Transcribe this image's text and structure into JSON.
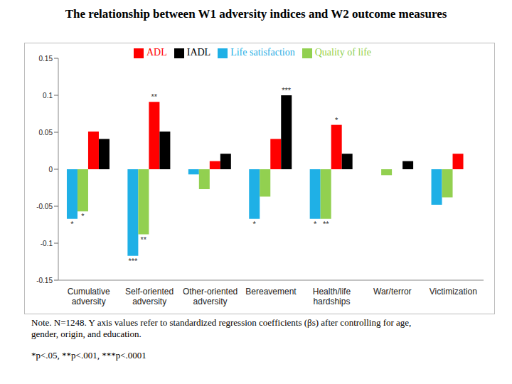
{
  "chart_data": {
    "type": "bar",
    "title": "The relationship between W1 adversity indices and W2 outcome measures",
    "categories": [
      "Cumulative adversity",
      "Self-oriented adversity",
      "Other-oriented adversity",
      "Bereavement",
      "Health/life hardships",
      "War/terror",
      "Victimization"
    ],
    "series": [
      {
        "name": "Life satisfaction",
        "color": "#1fb0e6",
        "values": [
          -0.067,
          -0.117,
          -0.007,
          -0.067,
          -0.067,
          0,
          -0.048
        ]
      },
      {
        "name": "Quality of life",
        "color": "#92d050",
        "values": [
          -0.057,
          -0.088,
          -0.027,
          -0.037,
          -0.067,
          -0.008,
          -0.038
        ]
      },
      {
        "name": "ADL",
        "color": "#ff0000",
        "values": [
          0.051,
          0.091,
          0.011,
          0.041,
          0.06,
          0,
          0.021
        ]
      },
      {
        "name": "IADL",
        "color": "#000000",
        "values": [
          0.041,
          0.051,
          0.021,
          0.1,
          0.021,
          0.011,
          0
        ]
      }
    ],
    "ylim": [
      -0.15,
      0.15
    ],
    "yticks": [
      -0.15,
      -0.1,
      -0.05,
      0,
      0.05,
      0.1,
      0.15
    ],
    "legend": "top",
    "annotations": [
      {
        "category": "Cumulative adversity",
        "series": "Life satisfaction",
        "text": "*"
      },
      {
        "category": "Cumulative adversity",
        "series": "Quality of life",
        "text": "*"
      },
      {
        "category": "Self-oriented adversity",
        "series": "Life satisfaction",
        "text": "***"
      },
      {
        "category": "Self-oriented adversity",
        "series": "Quality of life",
        "text": "**"
      },
      {
        "category": "Self-oriented adversity",
        "series": "ADL",
        "text": "**"
      },
      {
        "category": "Bereavement",
        "series": "Life satisfaction",
        "text": "*"
      },
      {
        "category": "Bereavement",
        "series": "IADL",
        "text": "***"
      },
      {
        "category": "Health/life hardships",
        "series": "Life satisfaction",
        "text": "*"
      },
      {
        "category": "Health/life hardships",
        "series": "Quality of life",
        "text": "**"
      },
      {
        "category": "Health/life hardships",
        "series": "ADL",
        "text": "*"
      }
    ],
    "note": "Note. N=1248. Y axis values refer to standardized regression coefficients (βs) after controlling for age, gender, origin, and education.",
    "footnote": "*p<.05, **p<.001, ***p<.0001"
  }
}
